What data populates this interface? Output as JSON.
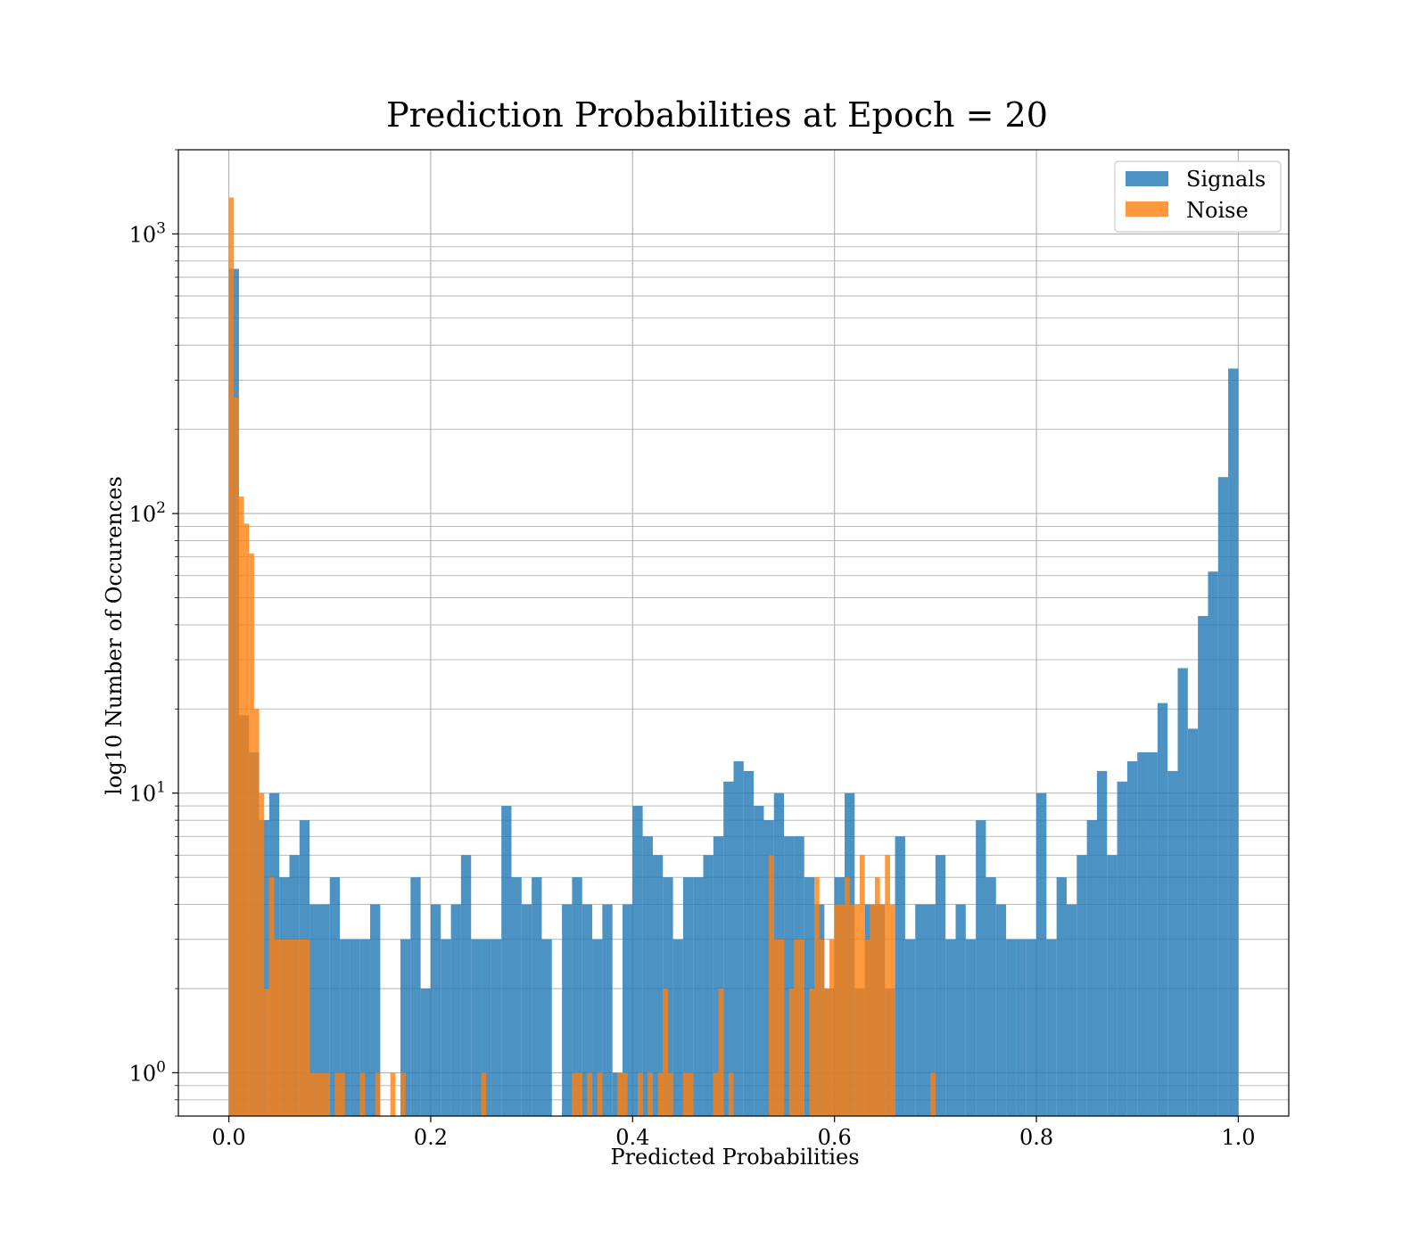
{
  "chart_data": {
    "type": "bar",
    "title": "Prediction Probabilities at Epoch = 20",
    "xlabel": "Predicted Probabilities",
    "ylabel": "log10 Number of Occurences",
    "xlim": [
      -0.05,
      1.05
    ],
    "ylim": [
      0.7,
      2000
    ],
    "yscale": "log",
    "grid": true,
    "legend_position": "top-right",
    "x_ticks": [
      {
        "value": 0.0,
        "label": "0.0"
      },
      {
        "value": 0.2,
        "label": "0.2"
      },
      {
        "value": 0.4,
        "label": "0.4"
      },
      {
        "value": 0.6,
        "label": "0.6"
      },
      {
        "value": 0.8,
        "label": "0.8"
      },
      {
        "value": 1.0,
        "label": "1.0"
      }
    ],
    "y_ticks": [
      {
        "value": 1,
        "base": "10",
        "exp": "0"
      },
      {
        "value": 10,
        "base": "10",
        "exp": "1"
      },
      {
        "value": 100,
        "base": "10",
        "exp": "2"
      },
      {
        "value": 1000,
        "base": "10",
        "exp": "3"
      }
    ],
    "series": [
      {
        "name": "Signals",
        "color": "#1f77b4",
        "opacity": 0.8,
        "bin_start": 0.0,
        "bin_width": 0.01,
        "counts": [
          750,
          19,
          14,
          8,
          10,
          5,
          6,
          8,
          4,
          4,
          5,
          3,
          3,
          3,
          4,
          0,
          0,
          3,
          5,
          2,
          4,
          3,
          4,
          6,
          3,
          3,
          3,
          9,
          5,
          4,
          5,
          3,
          0,
          4,
          5,
          4,
          3,
          4,
          1,
          4,
          9,
          7,
          6,
          5,
          3,
          5,
          5,
          6,
          7,
          11,
          13,
          12,
          9,
          8,
          10,
          7,
          7,
          5,
          4,
          2,
          5,
          10,
          2,
          4,
          4,
          2,
          7,
          3,
          4,
          4,
          6,
          3,
          4,
          3,
          8,
          5,
          4,
          3,
          3,
          3,
          10,
          3,
          5,
          4,
          6,
          8,
          12,
          6,
          11,
          13,
          14,
          14,
          21,
          12,
          28,
          17,
          43,
          62,
          135,
          330
        ]
      },
      {
        "name": "Noise",
        "color": "#ff7f0e",
        "opacity": 0.8,
        "bin_start": 0.0,
        "bin_width": 0.005,
        "counts": [
          1350,
          260,
          115,
          92,
          72,
          20,
          10,
          2,
          5,
          3,
          3,
          3,
          3,
          3,
          3,
          3,
          1,
          1,
          1,
          1,
          0,
          1,
          1,
          0,
          0,
          0,
          1,
          0,
          0,
          1,
          0,
          0,
          1,
          0,
          1,
          0,
          0,
          0,
          0,
          0,
          0,
          0,
          0,
          0,
          0,
          0,
          0,
          0,
          0,
          0,
          1,
          0,
          0,
          0,
          0,
          0,
          0,
          0,
          0,
          0,
          0,
          0,
          0,
          0,
          0,
          0,
          0,
          0,
          1,
          1,
          0,
          1,
          0,
          1,
          0,
          0,
          0,
          1,
          1,
          0,
          0,
          1,
          0,
          1,
          0,
          1,
          2,
          1,
          0,
          0,
          1,
          1,
          0,
          0,
          0,
          0,
          1,
          2,
          0,
          1,
          0,
          0,
          0,
          0,
          0,
          0,
          0,
          6,
          3,
          3,
          0,
          2,
          3,
          3,
          0,
          2,
          5,
          3,
          2,
          3,
          4,
          4,
          5,
          4,
          4,
          6,
          3,
          4,
          5,
          4,
          6,
          4,
          0,
          0,
          0,
          0,
          0,
          0,
          0,
          1,
          0,
          0,
          0,
          0,
          0,
          0,
          0,
          0,
          0,
          0,
          0,
          0,
          0,
          0,
          0,
          0,
          0,
          0,
          0,
          0,
          0,
          0,
          0,
          0,
          0,
          0,
          0,
          0,
          0,
          0,
          0,
          0,
          0,
          0,
          0,
          0,
          0,
          0,
          0,
          0,
          0,
          0,
          0,
          0,
          0,
          0,
          0,
          0,
          0,
          0,
          0,
          0,
          0,
          0,
          0,
          0,
          0,
          0,
          0,
          0
        ]
      }
    ]
  }
}
